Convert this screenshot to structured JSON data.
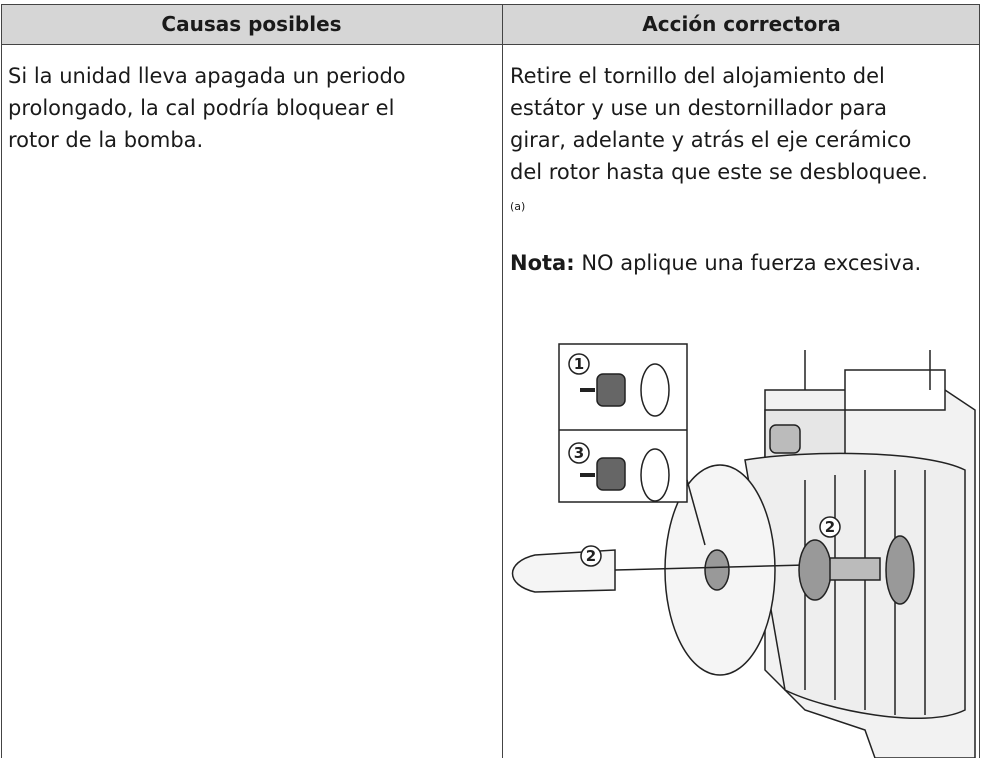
{
  "table": {
    "header": [
      "Causas posibles",
      "Acción correctora"
    ],
    "rows": [
      [
        {
          "lines": [
            "Si la unidad lleva apagada un periodo",
            "prolongado, la cal podría bloquear el",
            "rotor de la bomba."
          ]
        },
        {
          "lines": [
            "Retire el tornillo del alojamiento del",
            "estátor y use un destornillador para",
            "girar, adelante y atrás el eje cerámico",
            "del rotor hasta que este se desbloquee."
          ],
          "footnote": "(a)",
          "note": {
            "label": "Nota:",
            "text": "NO aplique una fuerza excesiva."
          }
        }
      ]
    ]
  },
  "figure": {
    "callouts": [
      "1",
      "3",
      "2",
      "2"
    ]
  }
}
